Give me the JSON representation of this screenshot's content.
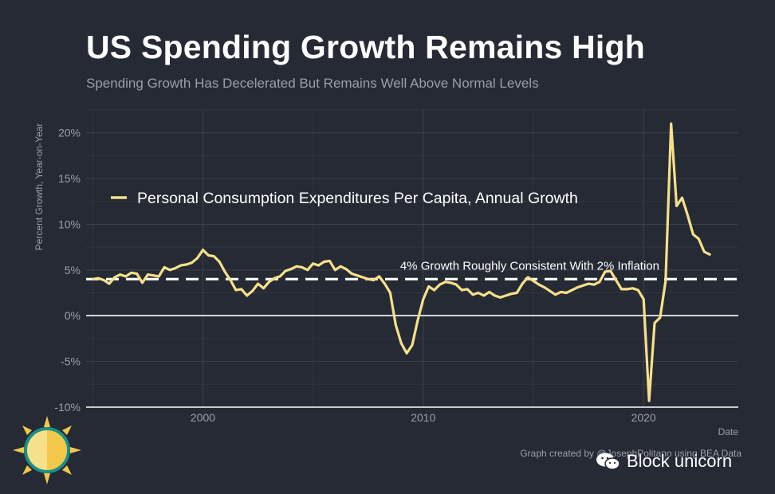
{
  "header": {
    "title": "US Spending Growth Remains High",
    "subtitle": "Spending Growth Has Decelerated But Remains Well Above Normal Levels"
  },
  "footer": {
    "credit": "Graph created by @JosephPolitano using BEA Data",
    "watermark": "Block unicorn"
  },
  "colors": {
    "background": "#252a34",
    "line": "#f7e08a",
    "grid": "#3a404c",
    "text_muted": "#9aa0a8"
  },
  "chart_data": {
    "type": "line",
    "title": "US Spending Growth Remains High",
    "subtitle": "Spending Growth Has Decelerated But Remains Well Above Normal Levels",
    "xlabel": "Date",
    "ylabel": "Percent Growth, Year-on-Year",
    "xlim": [
      1994.7,
      2024.3
    ],
    "ylim": [
      -10,
      22.5
    ],
    "x_ticks": [
      2000,
      2010,
      2020
    ],
    "y_ticks": [
      -10,
      -5,
      0,
      5,
      10,
      15,
      20
    ],
    "y_tick_labels": [
      "-10%",
      "-5%",
      "0%",
      "5%",
      "10%",
      "15%",
      "20%"
    ],
    "grid": true,
    "legend": {
      "position": "upper-left",
      "entries": [
        "Personal Consumption Expenditures Per Capita, Annual Growth"
      ]
    },
    "reference_line": {
      "y": 4,
      "style": "dashed",
      "label": "4% Growth Roughly Consistent With 2% Inflation"
    },
    "zero_line": 0,
    "series": [
      {
        "name": "Personal Consumption Expenditures Per Capita, Annual Growth",
        "x": [
          1995.0,
          1995.25,
          1995.5,
          1995.75,
          1996.0,
          1996.25,
          1996.5,
          1996.75,
          1997.0,
          1997.25,
          1997.5,
          1997.75,
          1998.0,
          1998.25,
          1998.5,
          1998.75,
          1999.0,
          1999.25,
          1999.5,
          1999.75,
          2000.0,
          2000.25,
          2000.5,
          2000.75,
          2001.0,
          2001.25,
          2001.5,
          2001.75,
          2002.0,
          2002.25,
          2002.5,
          2002.75,
          2003.0,
          2003.25,
          2003.5,
          2003.75,
          2004.0,
          2004.25,
          2004.5,
          2004.75,
          2005.0,
          2005.25,
          2005.5,
          2005.75,
          2006.0,
          2006.25,
          2006.5,
          2006.75,
          2007.0,
          2007.25,
          2007.5,
          2007.75,
          2008.0,
          2008.25,
          2008.5,
          2008.75,
          2009.0,
          2009.25,
          2009.5,
          2009.75,
          2010.0,
          2010.25,
          2010.5,
          2010.75,
          2011.0,
          2011.25,
          2011.5,
          2011.75,
          2012.0,
          2012.25,
          2012.5,
          2012.75,
          2013.0,
          2013.25,
          2013.5,
          2013.75,
          2014.0,
          2014.25,
          2014.5,
          2014.75,
          2015.0,
          2015.25,
          2015.5,
          2015.75,
          2016.0,
          2016.25,
          2016.5,
          2016.75,
          2017.0,
          2017.25,
          2017.5,
          2017.75,
          2018.0,
          2018.25,
          2018.5,
          2018.75,
          2019.0,
          2019.25,
          2019.5,
          2019.75,
          2020.0,
          2020.25,
          2020.5,
          2020.75,
          2021.0,
          2021.25,
          2021.5,
          2021.75,
          2022.0,
          2022.25,
          2022.5,
          2022.75,
          2023.0
        ],
        "y": [
          4.0,
          4.1,
          3.9,
          3.5,
          4.2,
          4.5,
          4.3,
          4.7,
          4.6,
          3.6,
          4.5,
          4.4,
          4.3,
          5.3,
          5.0,
          5.2,
          5.5,
          5.6,
          5.8,
          6.3,
          7.2,
          6.6,
          6.5,
          5.9,
          4.8,
          3.9,
          2.8,
          2.9,
          2.2,
          2.7,
          3.5,
          3.0,
          3.7,
          4.1,
          4.3,
          4.9,
          5.1,
          5.4,
          5.3,
          5.0,
          5.7,
          5.5,
          5.9,
          6.0,
          5.0,
          5.4,
          5.1,
          4.6,
          4.4,
          4.2,
          4.0,
          3.9,
          4.3,
          3.5,
          2.5,
          -1.0,
          -3.0,
          -4.1,
          -3.2,
          -0.5,
          1.8,
          3.2,
          2.8,
          3.4,
          3.7,
          3.6,
          3.4,
          2.8,
          2.9,
          2.3,
          2.5,
          2.2,
          2.6,
          2.2,
          2.0,
          2.2,
          2.4,
          2.5,
          3.5,
          4.2,
          3.8,
          3.4,
          3.1,
          2.7,
          2.3,
          2.6,
          2.5,
          2.8,
          3.1,
          3.3,
          3.5,
          3.4,
          3.7,
          4.8,
          4.9,
          3.9,
          2.9,
          2.9,
          3.0,
          2.8,
          1.8,
          -9.3,
          -0.8,
          -0.2,
          3.8,
          21.0,
          12.0,
          12.9,
          11.0,
          8.9,
          8.4,
          7.0,
          6.7
        ]
      }
    ]
  }
}
